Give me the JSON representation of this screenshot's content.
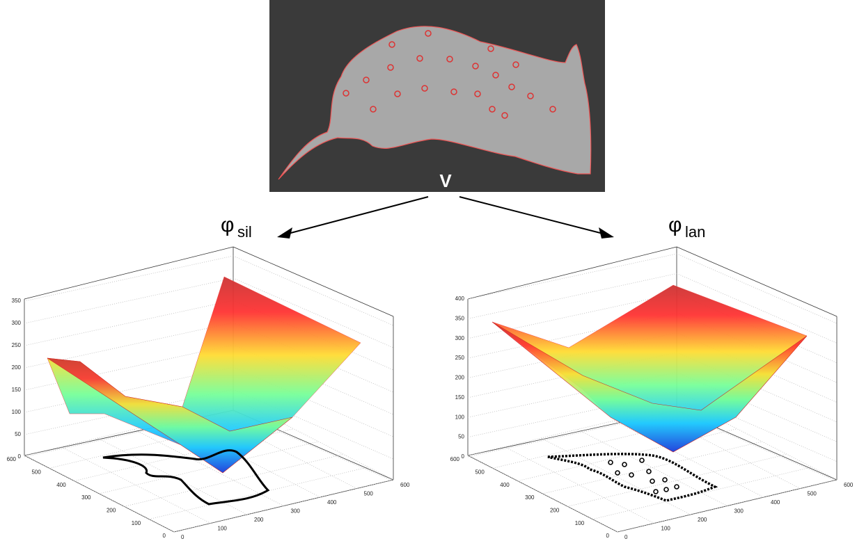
{
  "image": {
    "label": "V"
  },
  "left_panel": {
    "symbol": "φ",
    "subscript": "sil",
    "z_ticks": [
      0,
      50,
      100,
      150,
      200,
      250,
      300,
      350
    ],
    "y_ticks": [
      0,
      100,
      200,
      300,
      400,
      500,
      600
    ],
    "x_ticks": [
      0,
      100,
      200,
      300,
      400,
      500,
      600
    ]
  },
  "right_panel": {
    "symbol": "φ",
    "subscript": "lan",
    "z_ticks": [
      0,
      50,
      100,
      150,
      200,
      250,
      300,
      350,
      400
    ],
    "y_ticks": [
      0,
      100,
      200,
      300,
      400,
      500,
      600
    ],
    "x_ticks": [
      0,
      100,
      200,
      300,
      400,
      500,
      600
    ]
  }
}
